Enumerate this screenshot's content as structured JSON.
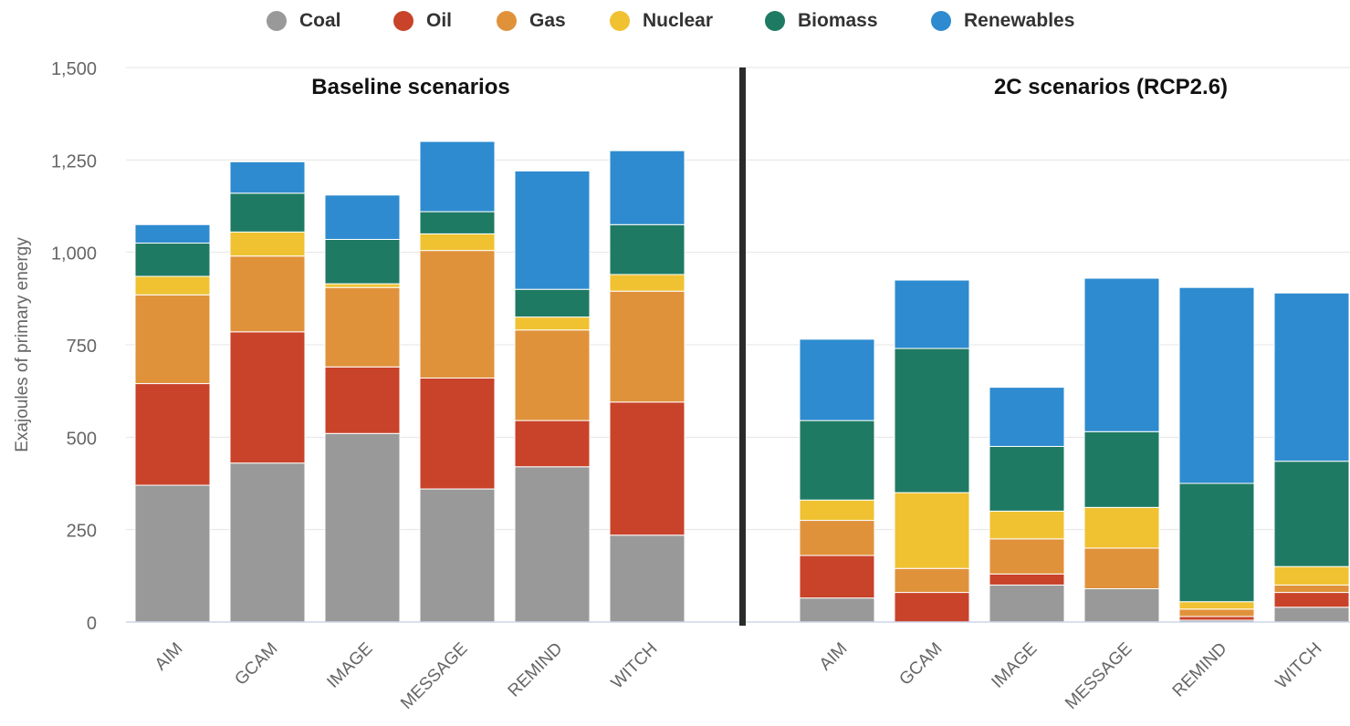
{
  "chart_data": {
    "type": "bar",
    "stacked": true,
    "ylabel": "Exajoules of primary energy",
    "ylim": [
      0,
      1500
    ],
    "yticks": [
      0,
      250,
      500,
      750,
      1000,
      1250,
      1500
    ],
    "ytick_labels": [
      "0",
      "250",
      "500",
      "750",
      "1,000",
      "1,250",
      "1,500"
    ],
    "grid": true,
    "legend_position": "top",
    "colors": {
      "Coal": "#999999",
      "Oil": "#c8432a",
      "Gas": "#e0923b",
      "Nuclear": "#f0c232",
      "Biomass": "#1f7a63",
      "Renewables": "#2e8bcf"
    },
    "legend": [
      "Coal",
      "Oil",
      "Gas",
      "Nuclear",
      "Biomass",
      "Renewables"
    ],
    "groups": [
      {
        "title": "Baseline scenarios",
        "categories": [
          "AIM",
          "GCAM",
          "IMAGE",
          "MESSAGE",
          "REMIND",
          "WITCH"
        ],
        "series": [
          {
            "name": "Coal",
            "values": [
              370,
              430,
              510,
              360,
              420,
              235
            ]
          },
          {
            "name": "Oil",
            "values": [
              275,
              355,
              180,
              300,
              125,
              360
            ]
          },
          {
            "name": "Gas",
            "values": [
              240,
              205,
              215,
              345,
              245,
              300
            ]
          },
          {
            "name": "Nuclear",
            "values": [
              50,
              65,
              10,
              45,
              35,
              45
            ]
          },
          {
            "name": "Biomass",
            "values": [
              90,
              105,
              120,
              60,
              75,
              135
            ]
          },
          {
            "name": "Renewables",
            "values": [
              50,
              85,
              120,
              190,
              320,
              200
            ]
          }
        ]
      },
      {
        "title": "2C scenarios (RCP2.6)",
        "categories": [
          "AIM",
          "GCAM",
          "IMAGE",
          "MESSAGE",
          "REMIND",
          "WITCH"
        ],
        "series": [
          {
            "name": "Coal",
            "values": [
              65,
              0,
              100,
              90,
              5,
              40
            ]
          },
          {
            "name": "Oil",
            "values": [
              115,
              80,
              30,
              0,
              10,
              40
            ]
          },
          {
            "name": "Gas",
            "values": [
              95,
              65,
              95,
              110,
              20,
              20
            ]
          },
          {
            "name": "Nuclear",
            "values": [
              55,
              205,
              75,
              110,
              20,
              50
            ]
          },
          {
            "name": "Biomass",
            "values": [
              215,
              390,
              175,
              205,
              320,
              285
            ]
          },
          {
            "name": "Renewables",
            "values": [
              220,
              185,
              160,
              415,
              530,
              455
            ]
          }
        ]
      }
    ]
  }
}
